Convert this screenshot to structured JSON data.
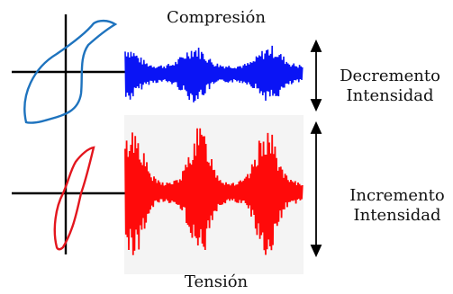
{
  "labels": {
    "top": "Compresión",
    "bottom": "Tensión",
    "decrement_line1": "Decremento",
    "decrement_line2": "Intensidad",
    "increment_line1": "Incremento",
    "increment_line2": "Intensidad"
  },
  "colors": {
    "compression": "#0a14f5",
    "tension": "#ff0a0a",
    "hysteresis_top": "#1e73be",
    "hysteresis_bottom": "#e3161e",
    "axis": "#000000",
    "panel_bg": "#f4f4f4"
  }
}
